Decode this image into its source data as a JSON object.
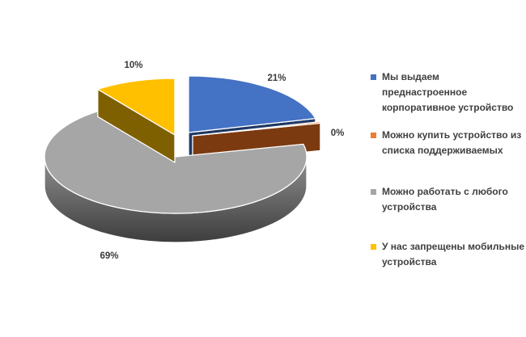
{
  "page": {
    "background": "#FFFFFF"
  },
  "chart_data": {
    "type": "pie",
    "style": "3d-exploded-pie",
    "title": "",
    "unit": "%",
    "start_angle_deg": 0,
    "direction": "clockwise",
    "legend_position": "right",
    "grid": false,
    "slices": [
      {
        "label": "Мы выдаем преднастроенное корпоративное устройство",
        "value": 21,
        "display": "21%",
        "color": "#4472C4",
        "side_color": "#1F3864"
      },
      {
        "label": "Можно купить устройство из списка поддерживаемых",
        "value": 0,
        "display": "0%",
        "color": "#ED7D31",
        "side_color": "#7C3A10"
      },
      {
        "label": "Можно работать с любого устройства",
        "value": 69,
        "display": "69%",
        "color": "#A6A6A6",
        "side_color": "#8F8F8F",
        "side_color2": "#3D3D3D"
      },
      {
        "label": "У нас запрещены мобильные устройства",
        "value": 10,
        "display": "10%",
        "color": "#FFC000",
        "side_color": "#7F6000"
      }
    ]
  },
  "legend": {
    "items": [
      {
        "label": "Мы выдаем\nпреднастроенное\nкорпоративное устройство"
      },
      {
        "label": "Можно купить устройство из\nсписка поддерживаемых"
      },
      {
        "label": "Можно работать с любого\nустройства"
      },
      {
        "label": "У нас запрещены мобильные\nустройства"
      }
    ]
  }
}
